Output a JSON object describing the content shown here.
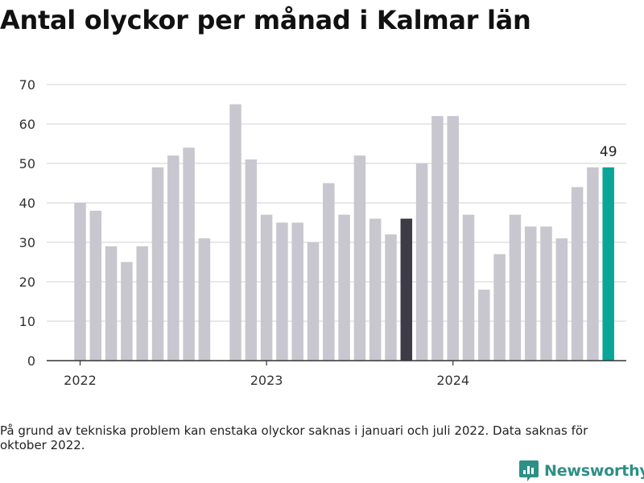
{
  "title": "Antal olyckor per månad i Kalmar län",
  "footnote": "På grund av tekniska problem kan enstaka olyckor saknas i januari och juli 2022. Data saknas för oktober 2022.",
  "brand": "Newsworthy",
  "colors": {
    "bar": "#c8c7cf",
    "highlight": "#3d3b46",
    "latest": "#0aa598",
    "grid": "#d9d9d9",
    "axis": "#333333",
    "brand": "#2e8f86"
  },
  "chart_data": {
    "type": "bar",
    "title": "Antal olyckor per månad i Kalmar län",
    "xlabel": "",
    "ylabel": "",
    "ylim": [
      0,
      70
    ],
    "yticks": [
      0,
      10,
      20,
      30,
      40,
      50,
      60,
      70
    ],
    "grid": true,
    "x_tick_labels": [
      {
        "label": "2022",
        "month": "2022-01"
      },
      {
        "label": "2023",
        "month": "2023-01"
      },
      {
        "label": "2024",
        "month": "2024-01"
      }
    ],
    "months": [
      "2022-01",
      "2022-02",
      "2022-03",
      "2022-04",
      "2022-05",
      "2022-06",
      "2022-07",
      "2022-08",
      "2022-09",
      "2022-10",
      "2022-11",
      "2022-12",
      "2023-01",
      "2023-02",
      "2023-03",
      "2023-04",
      "2023-05",
      "2023-06",
      "2023-07",
      "2023-08",
      "2023-09",
      "2023-10",
      "2023-11",
      "2023-12",
      "2024-01",
      "2024-02",
      "2024-03",
      "2024-04",
      "2024-05",
      "2024-06",
      "2024-07",
      "2024-08",
      "2024-09",
      "2024-10",
      "2024-11"
    ],
    "values": [
      40,
      38,
      29,
      25,
      29,
      49,
      52,
      54,
      31,
      null,
      65,
      51,
      37,
      35,
      35,
      30,
      45,
      37,
      52,
      36,
      32,
      36,
      50,
      62,
      62,
      37,
      18,
      27,
      37,
      34,
      34,
      31,
      44,
      49,
      49
    ],
    "highlight_month": "2023-10",
    "latest_month": "2024-11",
    "latest_label": "49"
  }
}
